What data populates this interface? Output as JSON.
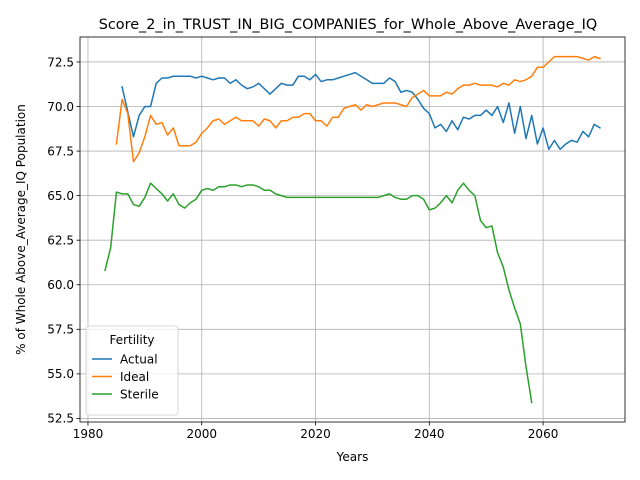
{
  "chart_data": {
    "type": "line",
    "title": "Score_2_in_TRUST_IN_BIG_COMPANIES_for_Whole_Above_Average_IQ",
    "xlabel": "Years",
    "ylabel": "% of Whole Above_Average_IQ Population",
    "xlim": [
      1978.6,
      2074.4
    ],
    "ylim": [
      52.3,
      73.9
    ],
    "xticks": [
      1980,
      2000,
      2020,
      2040,
      2060
    ],
    "yticks": [
      52.5,
      55.0,
      57.5,
      60.0,
      62.5,
      65.0,
      67.5,
      70.0,
      72.5
    ],
    "ytick_labels": [
      "52.5",
      "55.0",
      "57.5",
      "60.0",
      "62.5",
      "65.0",
      "67.5",
      "70.0",
      "72.5"
    ],
    "grid": true,
    "legend": {
      "title": "Fertility",
      "placement": "lower-left"
    },
    "series": [
      {
        "name": "Actual",
        "color": "#1f77b4",
        "x": [
          1986,
          1987,
          1988,
          1989,
          1990,
          1991,
          1992,
          1993,
          1994,
          1995,
          1996,
          1997,
          1998,
          1999,
          2000,
          2001,
          2002,
          2003,
          2004,
          2005,
          2006,
          2007,
          2008,
          2009,
          2010,
          2011,
          2012,
          2013,
          2014,
          2015,
          2016,
          2017,
          2018,
          2019,
          2020,
          2021,
          2022,
          2023,
          2024,
          2025,
          2026,
          2027,
          2028,
          2029,
          2030,
          2031,
          2032,
          2033,
          2034,
          2035,
          2036,
          2037,
          2038,
          2039,
          2040,
          2041,
          2042,
          2043,
          2044,
          2045,
          2046,
          2047,
          2048,
          2049,
          2050,
          2051,
          2052,
          2053,
          2054,
          2055,
          2056,
          2057,
          2058,
          2059,
          2060,
          2061,
          2062,
          2063,
          2064,
          2065,
          2066,
          2067,
          2068,
          2069,
          2070
        ],
        "values": [
          71.1,
          69.7,
          68.3,
          69.5,
          70.0,
          70.0,
          71.3,
          71.6,
          71.6,
          71.7,
          71.7,
          71.7,
          71.7,
          71.6,
          71.7,
          71.6,
          71.5,
          71.6,
          71.6,
          71.3,
          71.5,
          71.2,
          71.0,
          71.1,
          71.3,
          71.0,
          70.7,
          71.0,
          71.3,
          71.2,
          71.2,
          71.7,
          71.7,
          71.5,
          71.8,
          71.4,
          71.5,
          71.5,
          71.6,
          71.7,
          71.8,
          71.9,
          71.7,
          71.5,
          71.3,
          71.3,
          71.3,
          71.6,
          71.4,
          70.8,
          70.9,
          70.8,
          70.4,
          69.9,
          69.6,
          68.8,
          69.0,
          68.6,
          69.2,
          68.7,
          69.4,
          69.3,
          69.5,
          69.5,
          69.8,
          69.5,
          70.0,
          69.1,
          70.2,
          68.5,
          70.0,
          68.2,
          69.5,
          67.9,
          68.8,
          67.6,
          68.1,
          67.6,
          67.9,
          68.1,
          68.0,
          68.6,
          68.3,
          69.0,
          68.8
        ]
      },
      {
        "name": "Ideal",
        "color": "#ff7f0e",
        "x": [
          1985,
          1986,
          1987,
          1988,
          1989,
          1990,
          1991,
          1992,
          1993,
          1994,
          1995,
          1996,
          1997,
          1998,
          1999,
          2000,
          2001,
          2002,
          2003,
          2004,
          2005,
          2006,
          2007,
          2008,
          2009,
          2010,
          2011,
          2012,
          2013,
          2014,
          2015,
          2016,
          2017,
          2018,
          2019,
          2020,
          2021,
          2022,
          2023,
          2024,
          2025,
          2026,
          2027,
          2028,
          2029,
          2030,
          2031,
          2032,
          2033,
          2034,
          2035,
          2036,
          2037,
          2038,
          2039,
          2040,
          2041,
          2042,
          2043,
          2044,
          2045,
          2046,
          2047,
          2048,
          2049,
          2050,
          2051,
          2052,
          2053,
          2054,
          2055,
          2056,
          2057,
          2058,
          2059,
          2060,
          2061,
          2062,
          2063,
          2064,
          2065,
          2066,
          2067,
          2068,
          2069,
          2070
        ],
        "values": [
          67.9,
          70.4,
          69.6,
          66.9,
          67.4,
          68.3,
          69.5,
          69.0,
          69.1,
          68.4,
          68.8,
          67.8,
          67.8,
          67.8,
          68.0,
          68.5,
          68.8,
          69.2,
          69.3,
          69.0,
          69.2,
          69.4,
          69.2,
          69.2,
          69.2,
          68.9,
          69.3,
          69.2,
          68.8,
          69.2,
          69.2,
          69.4,
          69.4,
          69.6,
          69.6,
          69.2,
          69.2,
          68.9,
          69.4,
          69.4,
          69.9,
          70.0,
          70.1,
          69.8,
          70.1,
          70.0,
          70.1,
          70.2,
          70.2,
          70.2,
          70.1,
          70.0,
          70.5,
          70.7,
          70.9,
          70.6,
          70.6,
          70.6,
          70.8,
          70.7,
          71.0,
          71.2,
          71.2,
          71.3,
          71.2,
          71.2,
          71.2,
          71.1,
          71.3,
          71.2,
          71.5,
          71.4,
          71.5,
          71.7,
          72.2,
          72.2,
          72.5,
          72.8,
          72.8,
          72.8,
          72.8,
          72.8,
          72.7,
          72.6,
          72.8,
          72.7
        ]
      },
      {
        "name": "Sterile",
        "color": "#2ca02c",
        "x": [
          1983,
          1984,
          1985,
          1986,
          1987,
          1988,
          1989,
          1990,
          1991,
          1992,
          1993,
          1994,
          1995,
          1996,
          1997,
          1998,
          1999,
          2000,
          2001,
          2002,
          2003,
          2004,
          2005,
          2006,
          2007,
          2008,
          2009,
          2010,
          2011,
          2012,
          2013,
          2014,
          2015,
          2016,
          2017,
          2018,
          2019,
          2020,
          2021,
          2022,
          2023,
          2024,
          2025,
          2026,
          2027,
          2028,
          2029,
          2030,
          2031,
          2032,
          2033,
          2034,
          2035,
          2036,
          2037,
          2038,
          2039,
          2040,
          2041,
          2042,
          2043,
          2044,
          2045,
          2046,
          2047,
          2048,
          2049,
          2050,
          2051,
          2052,
          2053,
          2054,
          2055,
          2056,
          2057,
          2058
        ],
        "values": [
          60.8,
          62.1,
          65.2,
          65.1,
          65.1,
          64.5,
          64.4,
          64.9,
          65.7,
          65.4,
          65.1,
          64.7,
          65.1,
          64.5,
          64.3,
          64.6,
          64.8,
          65.3,
          65.4,
          65.3,
          65.5,
          65.5,
          65.6,
          65.6,
          65.5,
          65.6,
          65.6,
          65.5,
          65.3,
          65.3,
          65.1,
          65.0,
          64.9,
          64.9,
          64.9,
          64.9,
          64.9,
          64.9,
          64.9,
          64.9,
          64.9,
          64.9,
          64.9,
          64.9,
          64.9,
          64.9,
          64.9,
          64.9,
          64.9,
          65.0,
          65.1,
          64.9,
          64.8,
          64.8,
          65.0,
          65.0,
          64.8,
          64.2,
          64.3,
          64.6,
          65.0,
          64.6,
          65.3,
          65.7,
          65.3,
          65.0,
          63.6,
          63.2,
          63.3,
          61.8,
          61.0,
          59.7,
          58.7,
          57.8,
          55.4,
          53.4
        ]
      }
    ]
  }
}
